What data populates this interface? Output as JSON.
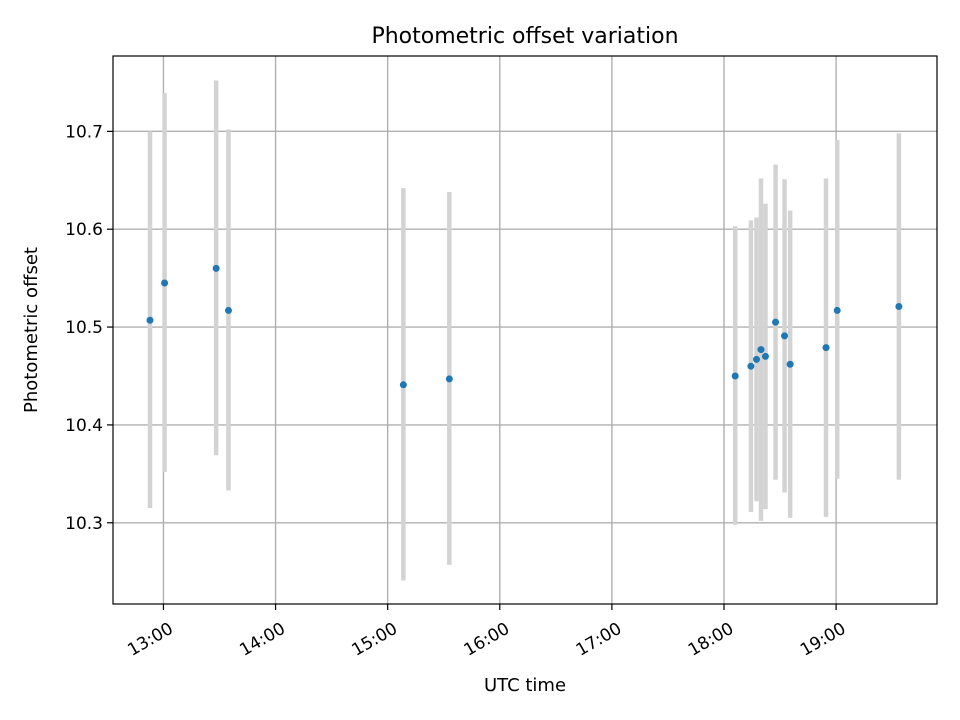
{
  "chart_data": {
    "type": "scatter",
    "title": "Photometric offset variation",
    "xlabel": "UTC time",
    "ylabel": "Photometric offset",
    "x_unit": "hour",
    "xlim": [
      12.55,
      19.9
    ],
    "ylim": [
      10.217,
      10.777
    ],
    "grid": true,
    "legend": "none",
    "x_ticks": [
      {
        "value": 13,
        "label": "13:00"
      },
      {
        "value": 14,
        "label": "14:00"
      },
      {
        "value": 15,
        "label": "15:00"
      },
      {
        "value": 16,
        "label": "16:00"
      },
      {
        "value": 17,
        "label": "17:00"
      },
      {
        "value": 18,
        "label": "18:00"
      },
      {
        "value": 19,
        "label": "19:00"
      }
    ],
    "y_ticks": [
      {
        "value": 10.3,
        "label": "10.3"
      },
      {
        "value": 10.4,
        "label": "10.4"
      },
      {
        "value": 10.5,
        "label": "10.5"
      },
      {
        "value": 10.6,
        "label": "10.6"
      },
      {
        "value": 10.7,
        "label": "10.7"
      }
    ],
    "colors": {
      "point": "#1f77b4",
      "errorbar": "#d3d3d3",
      "grid": "#b0b0b0"
    },
    "series": [
      {
        "points": [
          {
            "x": 12.88,
            "y": 10.507,
            "yerr_low": 10.315,
            "yerr_high": 10.7
          },
          {
            "x": 13.01,
            "y": 10.545,
            "yerr_low": 10.352,
            "yerr_high": 10.739
          },
          {
            "x": 13.47,
            "y": 10.56,
            "yerr_low": 10.369,
            "yerr_high": 10.752
          },
          {
            "x": 13.58,
            "y": 10.517,
            "yerr_low": 10.333,
            "yerr_high": 10.702
          },
          {
            "x": 15.14,
            "y": 10.441,
            "yerr_low": 10.241,
            "yerr_high": 10.642
          },
          {
            "x": 15.55,
            "y": 10.447,
            "yerr_low": 10.257,
            "yerr_high": 10.638
          },
          {
            "x": 18.1,
            "y": 10.45,
            "yerr_low": 10.298,
            "yerr_high": 10.603
          },
          {
            "x": 18.24,
            "y": 10.46,
            "yerr_low": 10.311,
            "yerr_high": 10.609
          },
          {
            "x": 18.29,
            "y": 10.467,
            "yerr_low": 10.322,
            "yerr_high": 10.612
          },
          {
            "x": 18.33,
            "y": 10.477,
            "yerr_low": 10.302,
            "yerr_high": 10.652
          },
          {
            "x": 18.37,
            "y": 10.47,
            "yerr_low": 10.314,
            "yerr_high": 10.626
          },
          {
            "x": 18.46,
            "y": 10.505,
            "yerr_low": 10.344,
            "yerr_high": 10.666
          },
          {
            "x": 18.54,
            "y": 10.491,
            "yerr_low": 10.331,
            "yerr_high": 10.651
          },
          {
            "x": 18.59,
            "y": 10.462,
            "yerr_low": 10.305,
            "yerr_high": 10.619
          },
          {
            "x": 18.91,
            "y": 10.479,
            "yerr_low": 10.306,
            "yerr_high": 10.652
          },
          {
            "x": 19.01,
            "y": 10.517,
            "yerr_low": 10.345,
            "yerr_high": 10.691
          },
          {
            "x": 19.56,
            "y": 10.521,
            "yerr_low": 10.344,
            "yerr_high": 10.698
          }
        ]
      }
    ]
  }
}
